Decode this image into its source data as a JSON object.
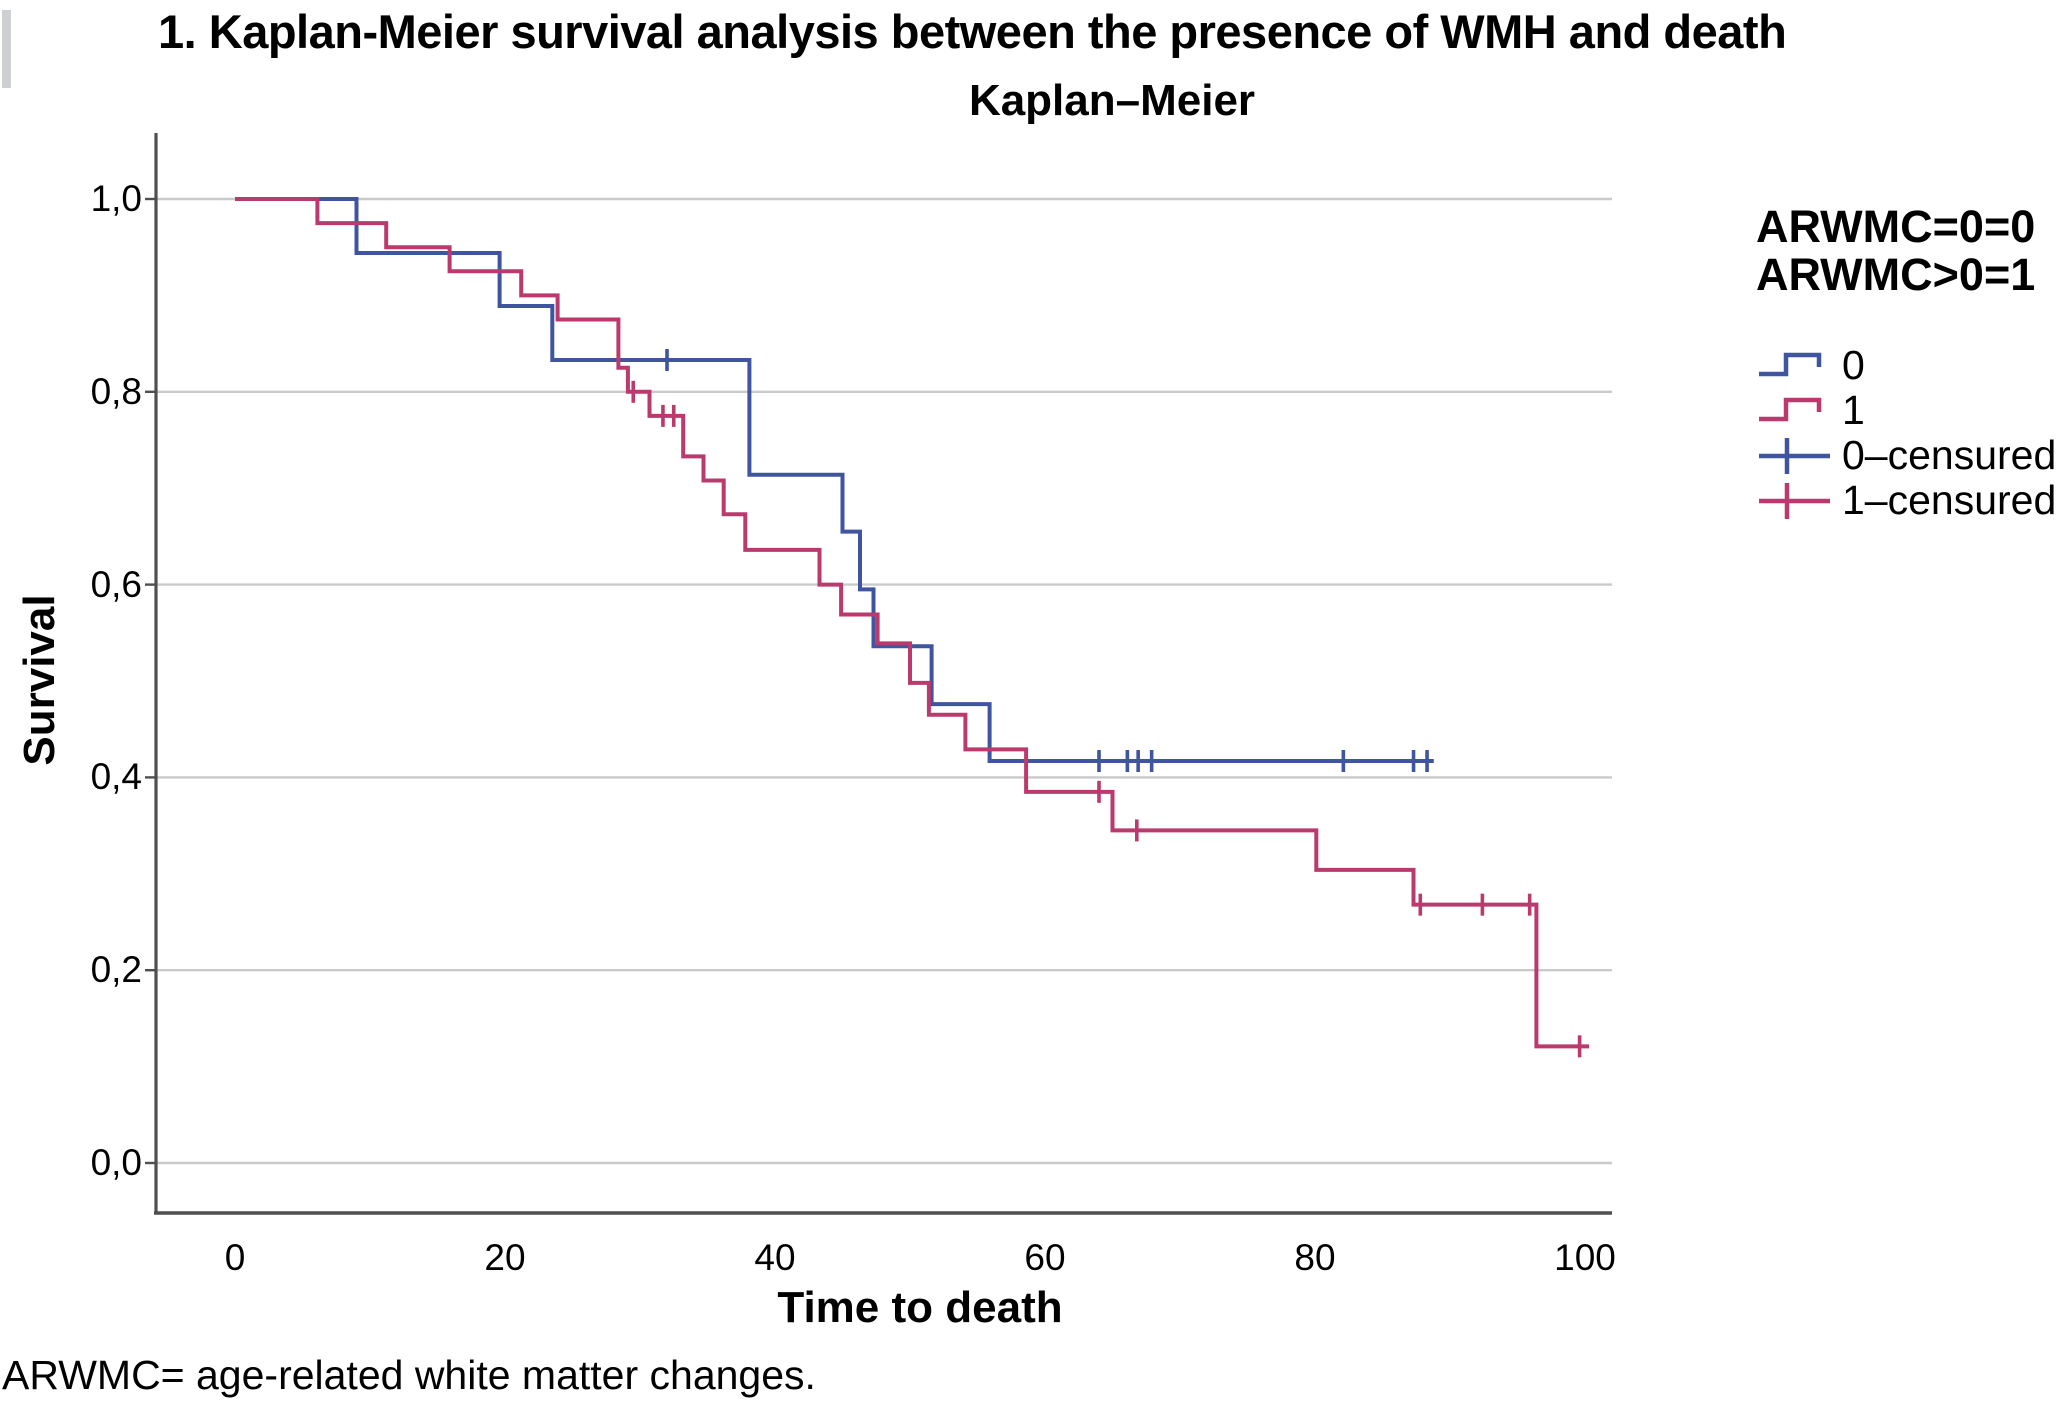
{
  "page": {
    "title": "1. Kaplan-Meier survival analysis between the presence of WMH and death",
    "footnote": "ARWMC= age-related white matter changes."
  },
  "chart": {
    "title": "Kaplan–Meier",
    "x_axis_title": "Time to death",
    "y_axis_title": "Survival",
    "legend": {
      "heading_line1": "ARWMC=0=0",
      "heading_line2": "ARWMC>0=1",
      "items": [
        {
          "label": "0",
          "glyph": "step-line-icon",
          "color": "#3F55A0"
        },
        {
          "label": "1",
          "glyph": "step-line-icon",
          "color": "#BA3A6E"
        },
        {
          "label": "0–censured",
          "glyph": "censor-plus-icon",
          "color": "#3F55A0"
        },
        {
          "label": "1–censured",
          "glyph": "censor-plus-icon",
          "color": "#BA3A6E"
        }
      ]
    }
  },
  "chart_data": {
    "type": "line",
    "subtype": "kaplan-meier-step",
    "title": "Kaplan–Meier",
    "xlabel": "Time to death",
    "ylabel": "Survival",
    "xlim": [
      0,
      102
    ],
    "ylim": [
      0,
      1.0
    ],
    "grid": true,
    "legend_position": "right",
    "x_ticks": [
      0,
      20,
      40,
      60,
      80,
      100
    ],
    "y_ticks": {
      "values": [
        0,
        0.2,
        0.4,
        0.6,
        0.8,
        1.0
      ],
      "labels": [
        "0,0",
        "0,2",
        "0,4",
        "0,6",
        "0,8",
        "1,0"
      ]
    },
    "group_definitions": [
      "ARWMC=0=0",
      "ARWMC>0=1"
    ],
    "series": [
      {
        "name": "0",
        "meaning": "ARWMC=0",
        "color": "#3F55A0",
        "steps": [
          [
            0,
            1.0
          ],
          [
            9.0,
            1.0
          ],
          [
            9.0,
            0.944
          ],
          [
            19.6,
            0.944
          ],
          [
            19.6,
            0.889
          ],
          [
            23.5,
            0.889
          ],
          [
            23.5,
            0.833
          ],
          [
            38.1,
            0.833
          ],
          [
            38.1,
            0.714
          ],
          [
            45.0,
            0.714
          ],
          [
            45.0,
            0.655
          ],
          [
            46.3,
            0.655
          ],
          [
            46.3,
            0.595
          ],
          [
            47.3,
            0.595
          ],
          [
            47.3,
            0.536
          ],
          [
            51.6,
            0.536
          ],
          [
            51.6,
            0.476
          ],
          [
            55.9,
            0.476
          ],
          [
            55.9,
            0.417
          ],
          [
            88.8,
            0.417
          ]
        ],
        "censored": [
          [
            32.0,
            0.833
          ],
          [
            64.0,
            0.417
          ],
          [
            66.1,
            0.417
          ],
          [
            66.9,
            0.417
          ],
          [
            67.9,
            0.417
          ],
          [
            82.1,
            0.417
          ],
          [
            87.3,
            0.417
          ],
          [
            88.3,
            0.417
          ]
        ]
      },
      {
        "name": "1",
        "meaning": "ARWMC>0",
        "color": "#BA3A6E",
        "steps": [
          [
            0,
            1.0
          ],
          [
            6.1,
            1.0
          ],
          [
            6.1,
            0.975
          ],
          [
            11.2,
            0.975
          ],
          [
            11.2,
            0.95
          ],
          [
            15.9,
            0.95
          ],
          [
            15.9,
            0.925
          ],
          [
            21.2,
            0.925
          ],
          [
            21.2,
            0.9
          ],
          [
            23.9,
            0.9
          ],
          [
            23.9,
            0.875
          ],
          [
            28.4,
            0.875
          ],
          [
            28.4,
            0.825
          ],
          [
            29.1,
            0.825
          ],
          [
            29.1,
            0.8
          ],
          [
            30.7,
            0.8
          ],
          [
            30.7,
            0.775
          ],
          [
            33.2,
            0.775
          ],
          [
            33.2,
            0.733
          ],
          [
            34.7,
            0.733
          ],
          [
            34.7,
            0.708
          ],
          [
            36.2,
            0.708
          ],
          [
            36.2,
            0.673
          ],
          [
            37.8,
            0.673
          ],
          [
            37.8,
            0.636
          ],
          [
            43.3,
            0.636
          ],
          [
            43.3,
            0.6
          ],
          [
            44.9,
            0.6
          ],
          [
            44.9,
            0.569
          ],
          [
            47.6,
            0.569
          ],
          [
            47.6,
            0.539
          ],
          [
            50.0,
            0.539
          ],
          [
            50.0,
            0.498
          ],
          [
            51.4,
            0.498
          ],
          [
            51.4,
            0.465
          ],
          [
            54.1,
            0.465
          ],
          [
            54.1,
            0.429
          ],
          [
            58.6,
            0.429
          ],
          [
            58.6,
            0.385
          ],
          [
            65.0,
            0.385
          ],
          [
            65.0,
            0.345
          ],
          [
            80.1,
            0.345
          ],
          [
            80.1,
            0.304
          ],
          [
            87.3,
            0.304
          ],
          [
            87.3,
            0.268
          ],
          [
            96.4,
            0.268
          ],
          [
            96.4,
            0.121
          ],
          [
            100.3,
            0.121
          ]
        ],
        "censored": [
          [
            29.5,
            0.8
          ],
          [
            31.7,
            0.775
          ],
          [
            32.5,
            0.775
          ],
          [
            64.0,
            0.385
          ],
          [
            66.8,
            0.345
          ],
          [
            87.8,
            0.268
          ],
          [
            92.4,
            0.268
          ],
          [
            95.9,
            0.268
          ],
          [
            99.6,
            0.121
          ]
        ]
      }
    ],
    "style": {
      "grid_color": "#cacaca",
      "axis_color": "#4f4f4f",
      "line_width": 4
    }
  }
}
